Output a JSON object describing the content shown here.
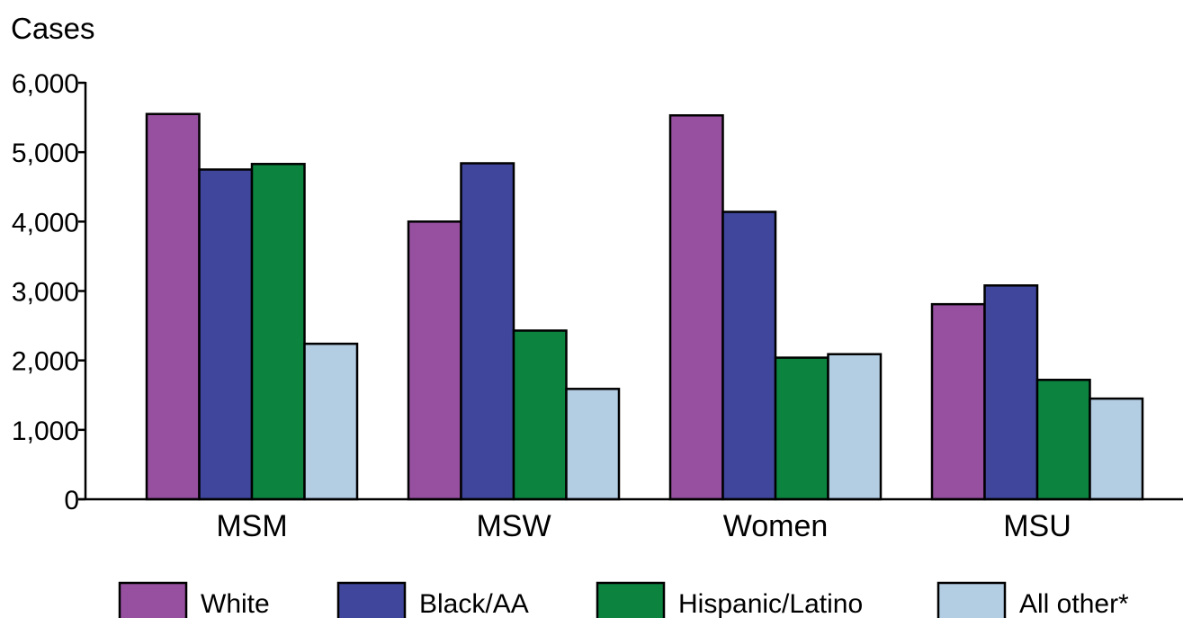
{
  "chart_data": {
    "type": "bar",
    "title": "",
    "ylabel": "Cases",
    "xlabel": "",
    "ylim": [
      0,
      6000
    ],
    "yticks": [
      0,
      1000,
      2000,
      3000,
      4000,
      5000,
      6000
    ],
    "ytick_labels": [
      "0",
      "1,000",
      "2,000",
      "3,000",
      "4,000",
      "5,000",
      "6,000"
    ],
    "grid": false,
    "legend_position": "bottom",
    "categories": [
      "MSM",
      "MSW",
      "Women",
      "MSU"
    ],
    "series": [
      {
        "name": "White",
        "color": "#96509f",
        "values": [
          5550,
          4000,
          5530,
          2810
        ]
      },
      {
        "name": "Black/AA",
        "color": "#3f469c",
        "values": [
          4750,
          4840,
          4140,
          3080
        ]
      },
      {
        "name": "Hispanic/Latino",
        "color": "#0c8440",
        "values": [
          4830,
          2430,
          2040,
          1720
        ]
      },
      {
        "name": "All other*",
        "color": "#b3cde3",
        "values": [
          2240,
          1590,
          2090,
          1450
        ]
      }
    ]
  }
}
